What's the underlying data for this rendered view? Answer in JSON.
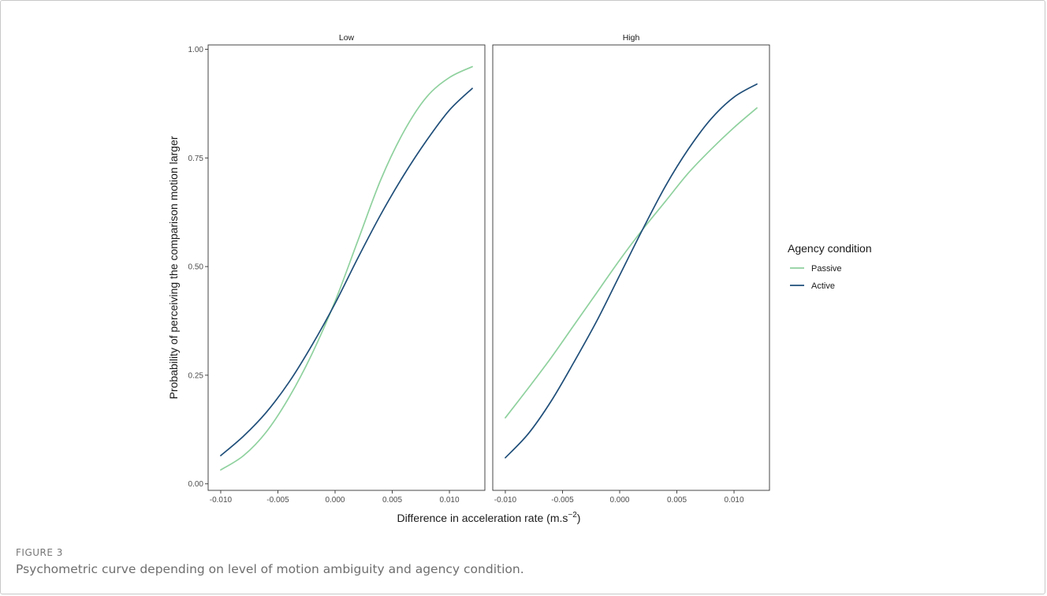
{
  "figure": {
    "label": "FIGURE 3",
    "caption": "Psychometric curve depending on level of motion ambiguity and agency condition."
  },
  "colors": {
    "passive": "#8fd19e",
    "active": "#1f4e79"
  },
  "chart_data": {
    "type": "line",
    "facets": [
      {
        "title": "Low",
        "series": [
          {
            "name": "Passive",
            "x": [
              -0.01,
              -0.008,
              -0.006,
              -0.004,
              -0.002,
              0.0,
              0.002,
              0.004,
              0.006,
              0.008,
              0.01,
              0.012
            ],
            "y": [
              0.032,
              0.065,
              0.12,
              0.2,
              0.3,
              0.42,
              0.56,
              0.7,
              0.81,
              0.89,
              0.935,
              0.96
            ]
          },
          {
            "name": "Active",
            "x": [
              -0.01,
              -0.008,
              -0.006,
              -0.004,
              -0.002,
              0.0,
              0.002,
              0.004,
              0.006,
              0.008,
              0.01,
              0.012
            ],
            "y": [
              0.065,
              0.11,
              0.165,
              0.235,
              0.32,
              0.415,
              0.52,
              0.62,
              0.71,
              0.79,
              0.86,
              0.91
            ]
          }
        ]
      },
      {
        "title": "High",
        "series": [
          {
            "name": "Passive",
            "x": [
              -0.01,
              -0.008,
              -0.006,
              -0.004,
              -0.002,
              0.0,
              0.002,
              0.004,
              0.006,
              0.008,
              0.01,
              0.012
            ],
            "y": [
              0.152,
              0.22,
              0.29,
              0.365,
              0.44,
              0.515,
              0.585,
              0.65,
              0.715,
              0.77,
              0.82,
              0.865
            ]
          },
          {
            "name": "Active",
            "x": [
              -0.01,
              -0.008,
              -0.006,
              -0.004,
              -0.002,
              0.0,
              0.002,
              0.004,
              0.006,
              0.008,
              0.01,
              0.012
            ],
            "y": [
              0.06,
              0.115,
              0.19,
              0.28,
              0.375,
              0.48,
              0.585,
              0.685,
              0.77,
              0.84,
              0.89,
              0.92
            ]
          }
        ]
      }
    ],
    "xlabel": "Difference in acceleration rate (m.s",
    "xlabel_superscript": "−2",
    "xlabel_suffix": ")",
    "ylabel": "Probability of perceiving the comparison motion larger",
    "xlim": [
      -0.0111,
      0.0131
    ],
    "ylim": [
      -0.015,
      1.01
    ],
    "x_ticks": [
      -0.01,
      -0.005,
      0.0,
      0.005,
      0.01
    ],
    "x_tick_labels": [
      "-0.010",
      "-0.005",
      "0.000",
      "0.005",
      "0.010"
    ],
    "y_ticks": [
      0.0,
      0.25,
      0.5,
      0.75,
      1.0
    ],
    "y_tick_labels": [
      "0.00",
      "0.25",
      "0.50",
      "0.75",
      "1.00"
    ],
    "grid": false,
    "legend": {
      "title": "Agency condition",
      "placement": "right",
      "entries": [
        "Passive",
        "Active"
      ]
    }
  }
}
